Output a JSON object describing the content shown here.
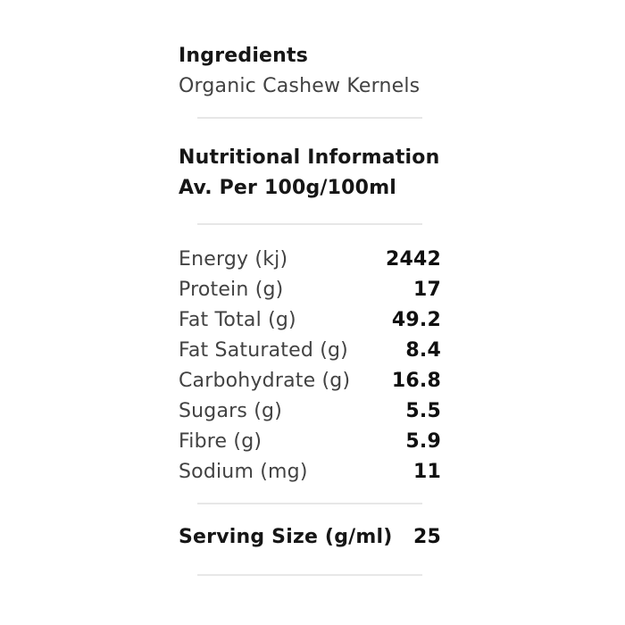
{
  "panel": {
    "ingredients": {
      "title": "Ingredients",
      "text": "Organic Cashew Kernels"
    },
    "nutrition": {
      "title": "Nutritional Information",
      "subtitle": "Av. Per 100g/100ml",
      "rows": [
        {
          "label": "Energy (kj)",
          "value": "2442"
        },
        {
          "label": "Protein (g)",
          "value": "17"
        },
        {
          "label": "Fat Total (g)",
          "value": "49.2"
        },
        {
          "label": "Fat Saturated (g)",
          "value": "8.4"
        },
        {
          "label": "Carbohydrate (g)",
          "value": "16.8"
        },
        {
          "label": "Sugars (g)",
          "value": "5.5"
        },
        {
          "label": "Fibre (g)",
          "value": "5.9"
        },
        {
          "label": "Sodium (mg)",
          "value": "11"
        }
      ],
      "serving": {
        "label": "Serving Size (g/ml)",
        "value": "25"
      }
    },
    "colors": {
      "background": "#ffffff",
      "heading": "#161616",
      "label": "#424242",
      "value": "#101010",
      "divider": "#e7e7e7"
    }
  }
}
